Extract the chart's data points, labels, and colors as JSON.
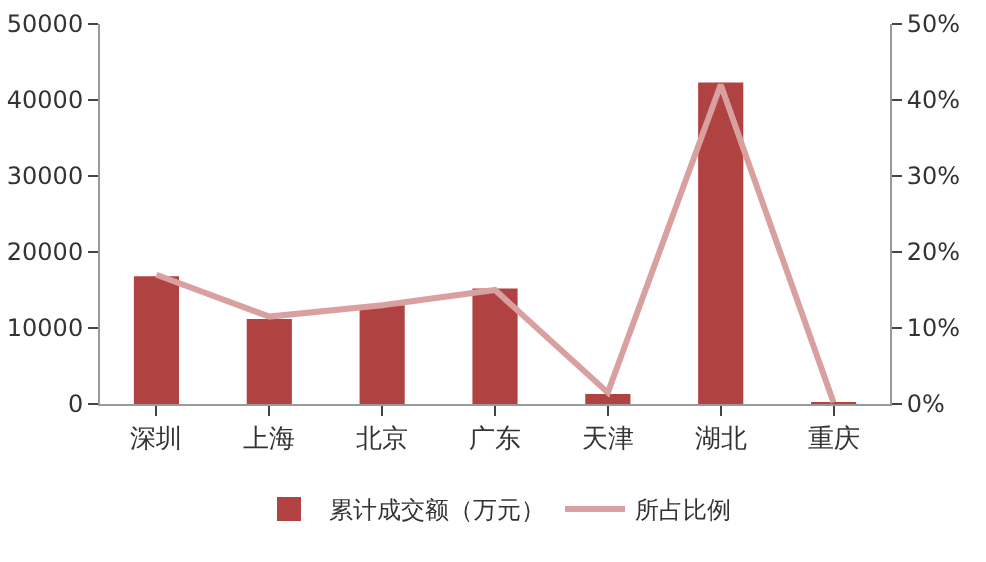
{
  "chart_data": {
    "type": "bar",
    "categories": [
      "深圳",
      "上海",
      "北京",
      "广东",
      "天津",
      "湖北",
      "重庆"
    ],
    "series": [
      {
        "name": "累计成交额（万元）",
        "color": "#b04242",
        "values": [
          16800,
          11200,
          13000,
          15200,
          1300,
          42300,
          100
        ]
      },
      {
        "name": "所占比例",
        "color": "#d9a0a0",
        "type": "line",
        "axis": "y2",
        "values": [
          17,
          11.5,
          13,
          15,
          1.5,
          42,
          0.2
        ]
      }
    ],
    "ylim": [
      0,
      50000
    ],
    "yticks": [
      0,
      10000,
      20000,
      30000,
      40000,
      50000
    ],
    "y2lim": [
      0,
      50
    ],
    "y2ticks": [
      {
        "value": 0,
        "label": "0%"
      },
      {
        "value": 10,
        "label": "10%"
      },
      {
        "value": 20,
        "label": "20%"
      },
      {
        "value": 30,
        "label": "30%"
      },
      {
        "value": 40,
        "label": "40%"
      },
      {
        "value": 50,
        "label": "50%"
      }
    ],
    "grid": false,
    "legend": "bottom",
    "marker": "none",
    "line_style": "solid"
  }
}
